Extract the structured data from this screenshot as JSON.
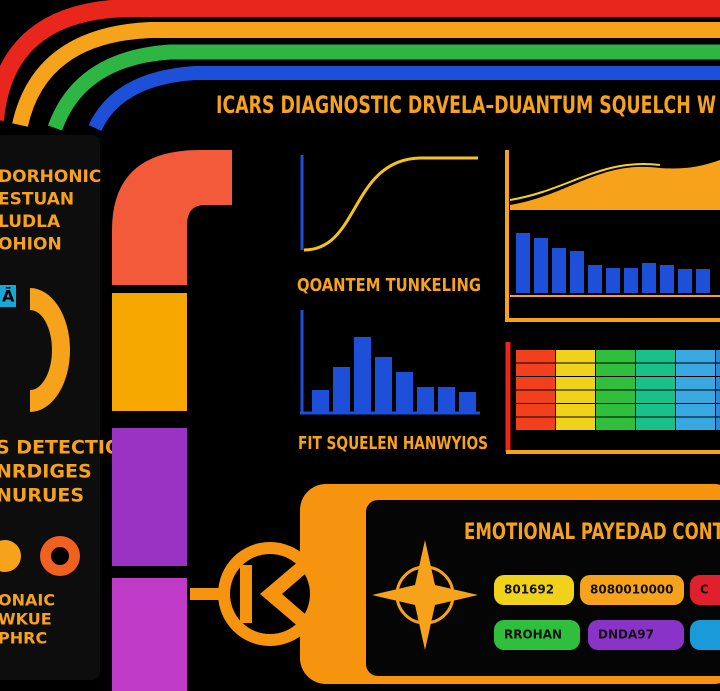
{
  "header": {
    "title": "ICARS DIAGNOSTIC DRVELA–DUANTUM SQUELCH W"
  },
  "left_panel": {
    "block_1": [
      "DORHONIC",
      "ESTUAN",
      "LUDLA",
      "OHION"
    ],
    "badge": "Ā",
    "block_2": [
      "S DETECTION",
      "NRDIGES",
      "NURUES"
    ],
    "block_3": [
      "ONAIC",
      "WKUE",
      "PHRC"
    ]
  },
  "panels": {
    "tunneling": {
      "label": "QOANTEM TUNKELING"
    },
    "squelch": {
      "label": "FIT SQUELEN HANWYIOS",
      "bars": [
        22,
        45,
        75,
        55,
        40,
        25,
        25,
        20
      ]
    },
    "spectrum": {
      "bars": [
        60,
        55,
        45,
        42,
        28,
        25,
        25,
        30,
        28,
        24,
        24
      ]
    }
  },
  "payload": {
    "title": "EMOTIONAL PAYEDAD CONT",
    "buttons": [
      "801692",
      "8080010000",
      "C",
      "RROHAN",
      "DNDA97"
    ]
  }
}
